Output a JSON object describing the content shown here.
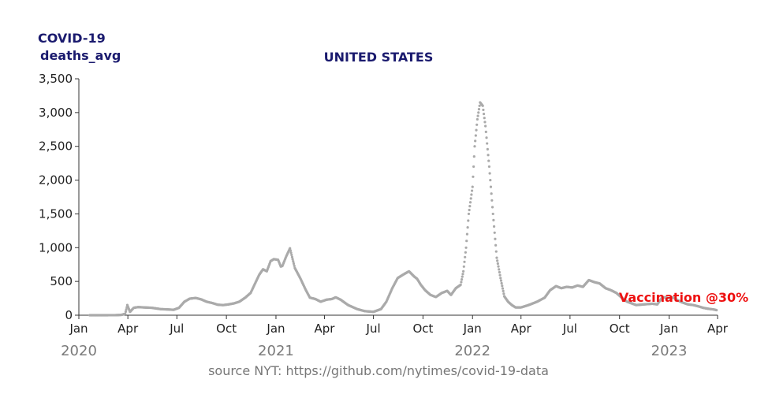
{
  "header": {
    "line1": "COVID-19",
    "line2": "deaths_avg",
    "country": "UNITED STATES"
  },
  "source": "source NYT: https://github.com/nytimes/covid-19-data",
  "chart_data": {
    "type": "scatter",
    "title": "UNITED STATES",
    "ylabel": "deaths_avg",
    "ylim": [
      0,
      3500
    ],
    "yticks": [
      0,
      500,
      1000,
      1500,
      2000,
      2500,
      3000,
      3500
    ],
    "yticklabels": [
      "0",
      "500",
      "1,000",
      "1,500",
      "2,000",
      "2,500",
      "3,000",
      "3,500"
    ],
    "xlim": [
      "2020-01-01",
      "2023-04-01"
    ],
    "xticks": [
      "2020-01-01",
      "2020-04-01",
      "2020-07-01",
      "2020-10-01",
      "2021-01-01",
      "2021-04-01",
      "2021-07-01",
      "2021-10-01",
      "2022-01-01",
      "2022-04-01",
      "2022-07-01",
      "2022-10-01",
      "2023-01-01",
      "2023-04-01"
    ],
    "xticklabels": [
      "Jan",
      "Apr",
      "Jul",
      "Oct",
      "Jan",
      "Apr",
      "Jul",
      "Oct",
      "Jan",
      "Apr",
      "Jul",
      "Oct",
      "Jan",
      "Apr"
    ],
    "year_labels": [
      {
        "date": "2020-01-01",
        "label": "2020"
      },
      {
        "date": "2021-01-01",
        "label": "2021"
      },
      {
        "date": "2022-01-01",
        "label": "2022"
      },
      {
        "date": "2023-01-01",
        "label": "2023"
      }
    ],
    "series_color": "#aaaaaa",
    "annotation": {
      "text": "Vaccination @30%",
      "date": "2022-10-10",
      "y": 360,
      "color": "#ee1111"
    },
    "series": [
      {
        "dates": [
          "2020-01-21",
          "2020-02-15",
          "2020-03-10",
          "2020-03-20",
          "2020-03-27",
          "2020-03-31",
          "2020-04-05",
          "2020-04-12",
          "2020-04-20",
          "2020-05-01",
          "2020-05-15",
          "2020-06-01",
          "2020-06-15",
          "2020-06-25",
          "2020-07-05",
          "2020-07-15",
          "2020-07-25",
          "2020-08-05",
          "2020-08-15",
          "2020-08-25",
          "2020-09-05",
          "2020-09-15",
          "2020-09-25",
          "2020-10-05",
          "2020-10-15",
          "2020-10-25",
          "2020-11-05",
          "2020-11-15",
          "2020-11-25",
          "2020-12-01",
          "2020-12-08",
          "2020-12-15",
          "2020-12-22",
          "2020-12-28",
          "2021-01-05",
          "2021-01-10",
          "2021-01-13",
          "2021-01-20",
          "2021-01-27",
          "2021-02-05",
          "2021-02-15",
          "2021-02-25",
          "2021-03-05",
          "2021-03-15",
          "2021-03-25",
          "2021-04-05",
          "2021-04-15",
          "2021-04-22",
          "2021-05-01",
          "2021-05-15",
          "2021-06-01",
          "2021-06-15",
          "2021-07-01",
          "2021-07-15",
          "2021-07-25",
          "2021-08-05",
          "2021-08-15",
          "2021-08-25",
          "2021-09-05",
          "2021-09-15",
          "2021-09-20",
          "2021-09-27",
          "2021-10-05",
          "2021-10-15",
          "2021-10-25",
          "2021-11-05",
          "2021-11-15",
          "2021-11-22",
          "2021-12-01",
          "2021-12-10",
          "2021-12-15",
          "2021-12-20",
          "2021-12-25",
          "2022-01-01",
          "2022-01-05",
          "2022-01-10",
          "2022-01-15",
          "2022-01-20",
          "2022-01-25",
          "2022-02-01",
          "2022-02-08",
          "2022-02-15",
          "2022-02-22",
          "2022-03-01",
          "2022-03-08",
          "2022-03-15",
          "2022-03-22",
          "2022-04-01",
          "2022-04-15",
          "2022-05-01",
          "2022-05-15",
          "2022-05-25",
          "2022-06-05",
          "2022-06-15",
          "2022-06-25",
          "2022-07-05",
          "2022-07-15",
          "2022-07-25",
          "2022-08-05",
          "2022-08-15",
          "2022-08-25",
          "2022-09-05",
          "2022-09-15",
          "2022-09-25",
          "2022-10-05",
          "2022-10-15",
          "2022-11-01",
          "2022-11-15",
          "2022-12-01",
          "2022-12-10",
          "2022-12-20",
          "2023-01-01",
          "2023-01-08",
          "2023-01-15",
          "2023-01-25",
          "2023-02-05",
          "2023-02-15",
          "2023-02-25",
          "2023-03-05",
          "2023-03-15",
          "2023-03-25",
          "2023-03-30"
        ],
        "values": [
          0,
          0,
          1,
          5,
          20,
          150,
          50,
          110,
          120,
          115,
          110,
          90,
          85,
          80,
          110,
          200,
          245,
          255,
          235,
          200,
          180,
          155,
          150,
          160,
          175,
          200,
          260,
          330,
          500,
          600,
          680,
          650,
          800,
          830,
          820,
          720,
          730,
          870,
          990,
          700,
          550,
          380,
          260,
          240,
          200,
          230,
          240,
          265,
          230,
          150,
          90,
          60,
          50,
          90,
          200,
          400,
          550,
          600,
          650,
          570,
          540,
          450,
          370,
          300,
          270,
          330,
          360,
          300,
          400,
          450,
          650,
          1000,
          1500,
          1900,
          2500,
          2900,
          3150,
          3100,
          2800,
          2200,
          1500,
          850,
          550,
          280,
          200,
          150,
          115,
          115,
          150,
          200,
          260,
          370,
          430,
          400,
          420,
          410,
          440,
          420,
          520,
          490,
          470,
          400,
          370,
          330,
          260,
          200,
          150,
          160,
          170,
          160,
          270,
          250,
          265,
          230,
          190,
          160,
          150,
          130,
          110,
          95,
          85,
          75
        ]
      }
    ]
  }
}
